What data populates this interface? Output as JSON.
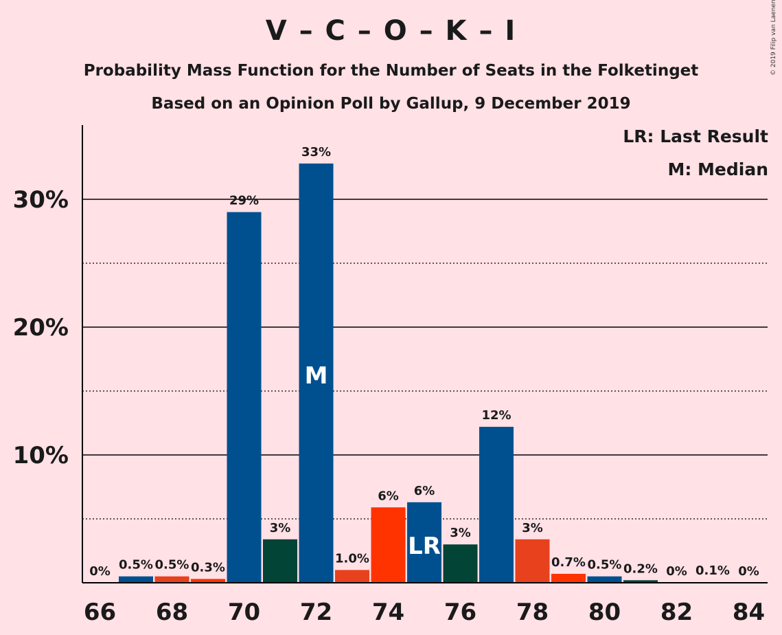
{
  "header": {
    "title": "V – C – O – K – I",
    "subtitle1": "Probability Mass Function for the Number of Seats in the Folketinget",
    "subtitle2": "Based on an Opinion Poll by Gallup, 9 December 2019",
    "copyright": "© 2019 Filip van Laenen"
  },
  "legend": {
    "last_result": "LR: Last Result",
    "median": "M: Median"
  },
  "chart_data": {
    "type": "bar",
    "title": "V – C – O – K – I",
    "subtitle": "Based on an Opinion Poll by Gallup, 9 December 2019",
    "xlabel": "",
    "ylabel": "",
    "ylim": [
      0,
      35
    ],
    "y_major_ticks": [
      10,
      20,
      30
    ],
    "y_tick_labels": [
      "10%",
      "20%",
      "30%"
    ],
    "y_minor_gridlines": [
      5,
      15,
      25
    ],
    "x_tick_labels": [
      "66",
      "68",
      "70",
      "72",
      "74",
      "76",
      "78",
      "80",
      "82",
      "84"
    ],
    "categories": [
      66,
      67,
      68,
      69,
      70,
      71,
      72,
      73,
      74,
      75,
      76,
      77,
      78,
      79,
      80,
      81,
      82,
      83,
      84
    ],
    "values": [
      0,
      0.5,
      0.5,
      0.3,
      29,
      3.4,
      32.8,
      1.0,
      5.9,
      6.3,
      3.0,
      12.2,
      3.4,
      0.7,
      0.5,
      0.2,
      0,
      0.05,
      0
    ],
    "value_labels": [
      "0%",
      "0.5%",
      "0.5%",
      "0.3%",
      "29%",
      "3%",
      "33%",
      "1.0%",
      "6%",
      "6%",
      "3%",
      "12%",
      "3%",
      "0.7%",
      "0.5%",
      "0.2%",
      "0%",
      "0.1%",
      "0%"
    ],
    "bar_colors": [
      "#00508f",
      "#00508f",
      "#e8411d",
      "#ff3300",
      "#00508f",
      "#024436",
      "#00508f",
      "#e8411d",
      "#ff3300",
      "#00508f",
      "#024436",
      "#00508f",
      "#e8411d",
      "#ff3300",
      "#00508f",
      "#024436",
      "#00508f",
      "#e8411d",
      "#ff3300"
    ],
    "median": {
      "seat": 72,
      "label": "M"
    },
    "last_result": {
      "seat": 75,
      "label": "LR"
    },
    "grid": true
  }
}
